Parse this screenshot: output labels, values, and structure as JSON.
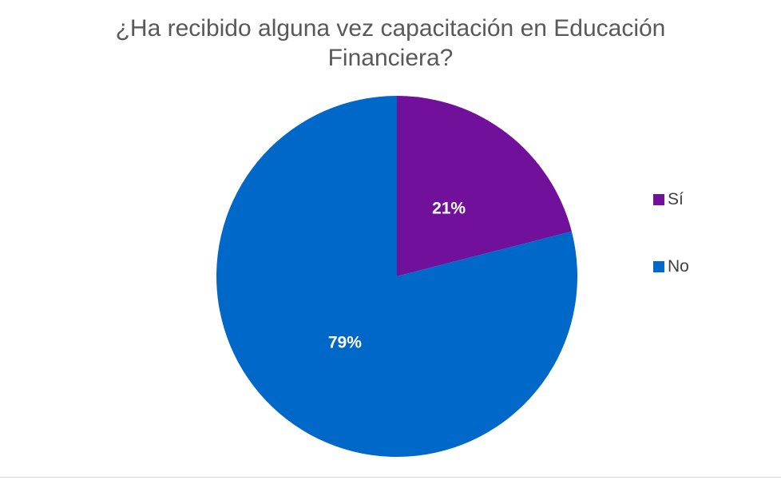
{
  "chart_data": {
    "type": "pie",
    "title": "¿Ha recibido alguna vez capacitación en Educación Financiera?",
    "categories": [
      "Sí",
      "No"
    ],
    "values": [
      21,
      79
    ],
    "labels": [
      "21%",
      "79%"
    ],
    "colors": [
      "#71109A",
      "#0068C8"
    ],
    "legend_position": "right"
  }
}
